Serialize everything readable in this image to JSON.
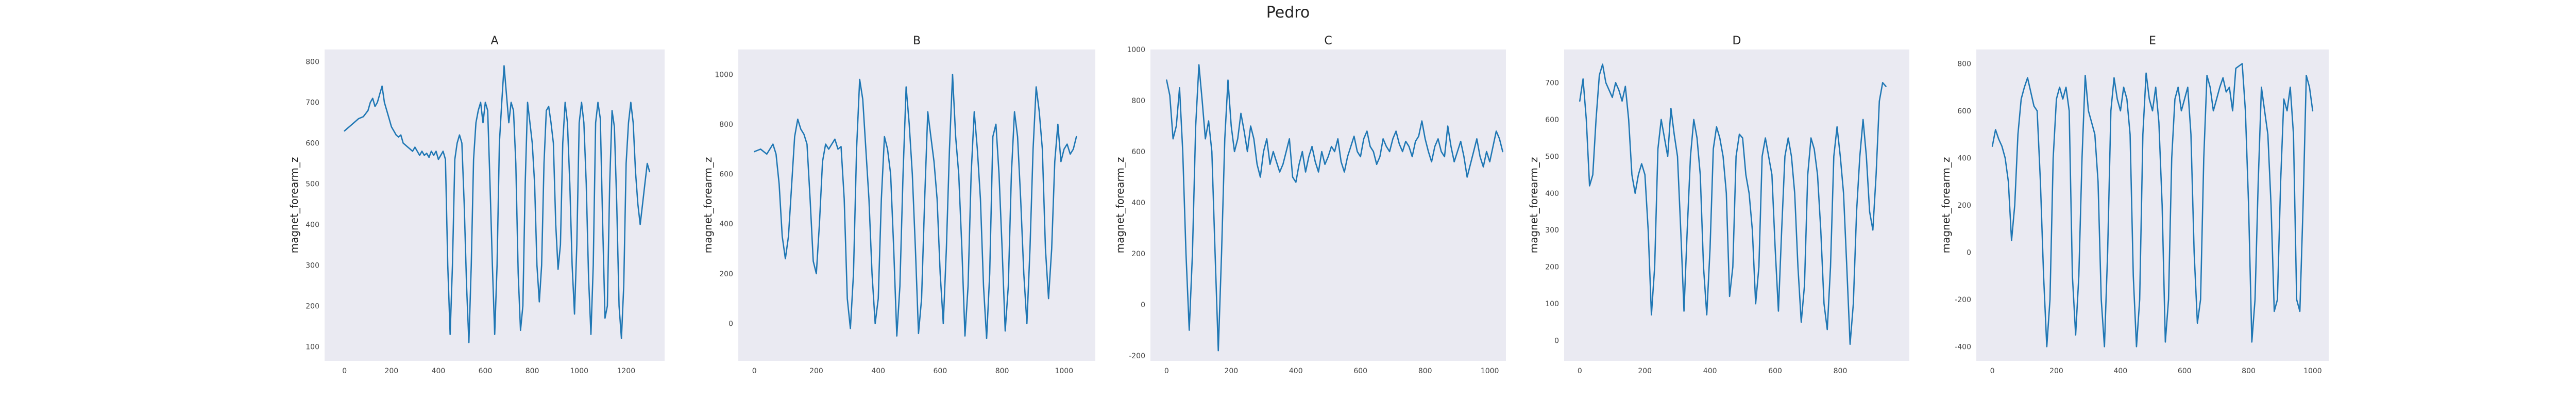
{
  "figure": {
    "title": "Pedro"
  },
  "colors": {
    "plot_background": "#eaeaf2",
    "series": "#1f77b4"
  },
  "chart_data": [
    {
      "type": "line",
      "title": "A",
      "xlabel": "",
      "ylabel": "magnet_forearm_z",
      "xlim": [
        -85,
        1364
      ],
      "ylim": [
        65,
        830
      ],
      "xticks": [
        0,
        200,
        400,
        600,
        800,
        1000,
        1200
      ],
      "yticks": [
        100,
        200,
        300,
        400,
        500,
        600,
        700,
        800
      ],
      "grid": false,
      "x": [
        0,
        20,
        40,
        60,
        80,
        100,
        110,
        120,
        130,
        140,
        150,
        160,
        170,
        180,
        190,
        200,
        210,
        220,
        230,
        240,
        250,
        260,
        270,
        280,
        290,
        300,
        310,
        320,
        330,
        340,
        350,
        360,
        370,
        380,
        390,
        400,
        410,
        420,
        430,
        440,
        450,
        460,
        470,
        480,
        490,
        500,
        510,
        520,
        530,
        540,
        550,
        560,
        570,
        580,
        590,
        600,
        610,
        620,
        630,
        640,
        650,
        660,
        670,
        680,
        690,
        700,
        710,
        720,
        730,
        740,
        750,
        760,
        770,
        780,
        790,
        800,
        810,
        820,
        830,
        840,
        850,
        860,
        870,
        880,
        890,
        900,
        910,
        920,
        930,
        940,
        950,
        960,
        970,
        980,
        990,
        1000,
        1010,
        1020,
        1030,
        1040,
        1050,
        1060,
        1070,
        1080,
        1090,
        1100,
        1110,
        1120,
        1130,
        1140,
        1150,
        1160,
        1170,
        1180,
        1190,
        1200,
        1210,
        1220,
        1230,
        1240,
        1250,
        1260,
        1270,
        1280,
        1290,
        1300
      ],
      "y": [
        630,
        640,
        650,
        660,
        665,
        680,
        700,
        710,
        690,
        700,
        720,
        740,
        700,
        680,
        660,
        640,
        630,
        620,
        615,
        620,
        600,
        595,
        590,
        585,
        580,
        590,
        580,
        570,
        580,
        570,
        575,
        565,
        580,
        570,
        580,
        560,
        570,
        580,
        560,
        300,
        130,
        300,
        560,
        600,
        620,
        600,
        450,
        250,
        110,
        300,
        560,
        650,
        680,
        700,
        650,
        700,
        680,
        500,
        300,
        130,
        300,
        600,
        700,
        790,
        720,
        650,
        700,
        680,
        550,
        280,
        140,
        200,
        500,
        700,
        650,
        600,
        500,
        300,
        210,
        300,
        550,
        680,
        690,
        650,
        600,
        400,
        290,
        350,
        600,
        700,
        650,
        500,
        300,
        180,
        350,
        650,
        700,
        650,
        500,
        270,
        130,
        300,
        650,
        700,
        660,
        400,
        170,
        200,
        500,
        680,
        640,
        450,
        200,
        120,
        250,
        550,
        650,
        700,
        650,
        530,
        450,
        400,
        450,
        500,
        550,
        530
      ],
      "series": [
        {
          "color": "#1f77b4"
        }
      ]
    },
    {
      "type": "line",
      "title": "B",
      "xlabel": "",
      "ylabel": "magnet_forearm_z",
      "xlim": [
        -52,
        1101
      ],
      "ylim": [
        -150,
        1100
      ],
      "xticks": [
        0,
        200,
        400,
        600,
        800,
        1000
      ],
      "yticks": [
        0,
        200,
        400,
        600,
        800,
        1000
      ],
      "grid": false,
      "x": [
        0,
        20,
        40,
        60,
        70,
        80,
        90,
        100,
        110,
        120,
        130,
        140,
        150,
        160,
        170,
        180,
        190,
        200,
        210,
        220,
        230,
        240,
        250,
        260,
        270,
        280,
        290,
        300,
        310,
        320,
        330,
        340,
        350,
        360,
        370,
        380,
        390,
        400,
        410,
        420,
        430,
        440,
        450,
        460,
        470,
        480,
        490,
        500,
        510,
        520,
        530,
        540,
        550,
        560,
        570,
        580,
        590,
        600,
        610,
        620,
        630,
        640,
        650,
        660,
        670,
        680,
        690,
        700,
        710,
        720,
        730,
        740,
        750,
        760,
        770,
        780,
        790,
        800,
        810,
        820,
        830,
        840,
        850,
        860,
        870,
        880,
        890,
        900,
        910,
        920,
        930,
        940,
        950,
        960,
        970,
        980,
        990,
        1000,
        1010,
        1020,
        1030,
        1040
      ],
      "y": [
        690,
        700,
        680,
        720,
        680,
        560,
        350,
        260,
        350,
        550,
        750,
        820,
        780,
        760,
        720,
        500,
        250,
        200,
        400,
        650,
        720,
        700,
        720,
        740,
        700,
        710,
        500,
        100,
        -20,
        200,
        700,
        980,
        900,
        700,
        500,
        200,
        0,
        100,
        500,
        750,
        700,
        600,
        300,
        -50,
        150,
        600,
        950,
        800,
        600,
        300,
        -40,
        100,
        500,
        850,
        750,
        650,
        500,
        200,
        0,
        300,
        700,
        1000,
        750,
        600,
        300,
        -50,
        150,
        600,
        850,
        700,
        500,
        150,
        -60,
        200,
        750,
        800,
        600,
        300,
        -30,
        150,
        600,
        850,
        750,
        500,
        200,
        0,
        300,
        700,
        950,
        850,
        700,
        300,
        100,
        300,
        650,
        800,
        650,
        700,
        720,
        680,
        700,
        750
      ],
      "series": [
        {
          "color": "#1f77b4"
        }
      ]
    },
    {
      "type": "line",
      "title": "C",
      "xlabel": "",
      "ylabel": "magnet_forearm_z",
      "xlim": [
        -50,
        1050
      ],
      "ylim": [
        -220,
        1000
      ],
      "xticks": [
        0,
        200,
        400,
        600,
        800,
        1000
      ],
      "yticks": [
        -200,
        0,
        200,
        400,
        600,
        800,
        1000
      ],
      "grid": false,
      "x": [
        0,
        10,
        20,
        30,
        40,
        50,
        60,
        70,
        80,
        90,
        100,
        110,
        120,
        130,
        140,
        150,
        160,
        170,
        180,
        190,
        200,
        210,
        220,
        230,
        240,
        250,
        260,
        270,
        280,
        290,
        300,
        310,
        320,
        330,
        340,
        350,
        360,
        370,
        380,
        390,
        400,
        410,
        420,
        430,
        440,
        450,
        460,
        470,
        480,
        490,
        500,
        510,
        520,
        530,
        540,
        550,
        560,
        570,
        580,
        590,
        600,
        610,
        620,
        630,
        640,
        650,
        660,
        670,
        680,
        690,
        700,
        710,
        720,
        730,
        740,
        750,
        760,
        770,
        780,
        790,
        800,
        810,
        820,
        830,
        840,
        850,
        860,
        870,
        880,
        890,
        900,
        910,
        920,
        930,
        940,
        950,
        960,
        970,
        980,
        990,
        1000,
        1010,
        1020,
        1030,
        1040
      ],
      "y": [
        880,
        820,
        650,
        700,
        850,
        600,
        200,
        -100,
        200,
        700,
        940,
        800,
        650,
        720,
        600,
        200,
        -180,
        200,
        650,
        880,
        700,
        600,
        650,
        750,
        680,
        600,
        700,
        650,
        550,
        500,
        600,
        650,
        550,
        600,
        560,
        520,
        550,
        600,
        650,
        500,
        480,
        550,
        600,
        520,
        580,
        620,
        560,
        520,
        600,
        550,
        580,
        620,
        600,
        650,
        560,
        520,
        580,
        620,
        660,
        600,
        580,
        650,
        680,
        620,
        600,
        550,
        580,
        650,
        620,
        600,
        650,
        680,
        630,
        600,
        640,
        620,
        580,
        640,
        660,
        720,
        650,
        600,
        560,
        620,
        650,
        600,
        580,
        700,
        620,
        560,
        600,
        640,
        580,
        500,
        550,
        600,
        650,
        580,
        540,
        600,
        560,
        620,
        680,
        650,
        600
      ],
      "series": [
        {
          "color": "#1f77b4"
        }
      ]
    },
    {
      "type": "line",
      "title": "D",
      "xlabel": "",
      "ylabel": "magnet_forearm_z",
      "xlim": [
        -48,
        1012
      ],
      "ylim": [
        -55,
        790
      ],
      "xticks": [
        0,
        200,
        400,
        600,
        800
      ],
      "yticks": [
        0,
        100,
        200,
        300,
        400,
        500,
        600,
        700
      ],
      "grid": false,
      "x": [
        0,
        10,
        20,
        30,
        40,
        50,
        60,
        70,
        80,
        90,
        100,
        110,
        120,
        130,
        140,
        150,
        160,
        170,
        180,
        190,
        200,
        210,
        220,
        230,
        240,
        250,
        260,
        270,
        280,
        290,
        300,
        310,
        320,
        330,
        340,
        350,
        360,
        370,
        380,
        390,
        400,
        410,
        420,
        430,
        440,
        450,
        460,
        470,
        480,
        490,
        500,
        510,
        520,
        530,
        540,
        550,
        560,
        570,
        580,
        590,
        600,
        610,
        620,
        630,
        640,
        650,
        660,
        670,
        680,
        690,
        700,
        710,
        720,
        730,
        740,
        750,
        760,
        770,
        780,
        790,
        800,
        810,
        820,
        830,
        840,
        850,
        860,
        870,
        880,
        890,
        900,
        910,
        920,
        930,
        940
      ],
      "y": [
        650,
        710,
        600,
        420,
        450,
        600,
        720,
        750,
        700,
        680,
        660,
        700,
        680,
        650,
        690,
        600,
        450,
        400,
        450,
        480,
        450,
        300,
        70,
        200,
        520,
        600,
        550,
        500,
        630,
        560,
        500,
        300,
        80,
        300,
        500,
        600,
        550,
        450,
        200,
        70,
        250,
        520,
        580,
        550,
        500,
        400,
        120,
        200,
        500,
        560,
        550,
        450,
        400,
        300,
        100,
        200,
        500,
        550,
        500,
        450,
        250,
        80,
        300,
        500,
        550,
        500,
        400,
        200,
        50,
        150,
        450,
        550,
        520,
        450,
        300,
        100,
        30,
        200,
        500,
        580,
        500,
        400,
        200,
        -10,
        100,
        350,
        500,
        600,
        500,
        350,
        300,
        450,
        650,
        700,
        690
      ],
      "series": [
        {
          "color": "#1f77b4"
        }
      ]
    },
    {
      "type": "line",
      "title": "E",
      "xlabel": "",
      "ylabel": "magnet_forearm_z",
      "xlim": [
        -50,
        1050
      ],
      "ylim": [
        -460,
        860
      ],
      "xticks": [
        0,
        200,
        400,
        600,
        800,
        1000
      ],
      "yticks": [
        -400,
        -200,
        0,
        200,
        400,
        600,
        800
      ],
      "grid": false,
      "x": [
        0,
        10,
        20,
        30,
        40,
        50,
        60,
        70,
        80,
        90,
        100,
        110,
        120,
        130,
        140,
        150,
        160,
        170,
        180,
        190,
        200,
        210,
        220,
        230,
        240,
        250,
        260,
        270,
        280,
        290,
        300,
        310,
        320,
        330,
        340,
        350,
        360,
        370,
        380,
        390,
        400,
        410,
        420,
        430,
        440,
        450,
        460,
        470,
        480,
        490,
        500,
        510,
        520,
        530,
        540,
        550,
        560,
        570,
        580,
        590,
        600,
        610,
        620,
        630,
        640,
        650,
        660,
        670,
        680,
        690,
        700,
        710,
        720,
        730,
        740,
        750,
        760,
        770,
        780,
        790,
        800,
        810,
        820,
        830,
        840,
        850,
        860,
        870,
        880,
        890,
        900,
        910,
        920,
        930,
        940,
        950,
        960,
        970,
        980,
        990,
        1000
      ],
      "y": [
        450,
        520,
        480,
        450,
        400,
        300,
        50,
        200,
        500,
        650,
        700,
        740,
        680,
        620,
        600,
        300,
        -100,
        -400,
        -200,
        400,
        650,
        700,
        650,
        700,
        600,
        -100,
        -350,
        -100,
        400,
        750,
        600,
        550,
        500,
        300,
        -200,
        -400,
        0,
        600,
        740,
        650,
        600,
        700,
        650,
        500,
        -100,
        -400,
        -200,
        500,
        760,
        650,
        600,
        700,
        550,
        200,
        -380,
        -200,
        400,
        650,
        700,
        600,
        650,
        700,
        500,
        0,
        -300,
        -200,
        400,
        750,
        700,
        600,
        650,
        700,
        740,
        680,
        700,
        600,
        780,
        790,
        800,
        600,
        200,
        -380,
        -200,
        300,
        700,
        600,
        500,
        200,
        -250,
        -200,
        300,
        650,
        600,
        700,
        500,
        -200,
        -250,
        200,
        750,
        700,
        600
      ],
      "series": [
        {
          "color": "#1f77b4"
        }
      ]
    }
  ]
}
